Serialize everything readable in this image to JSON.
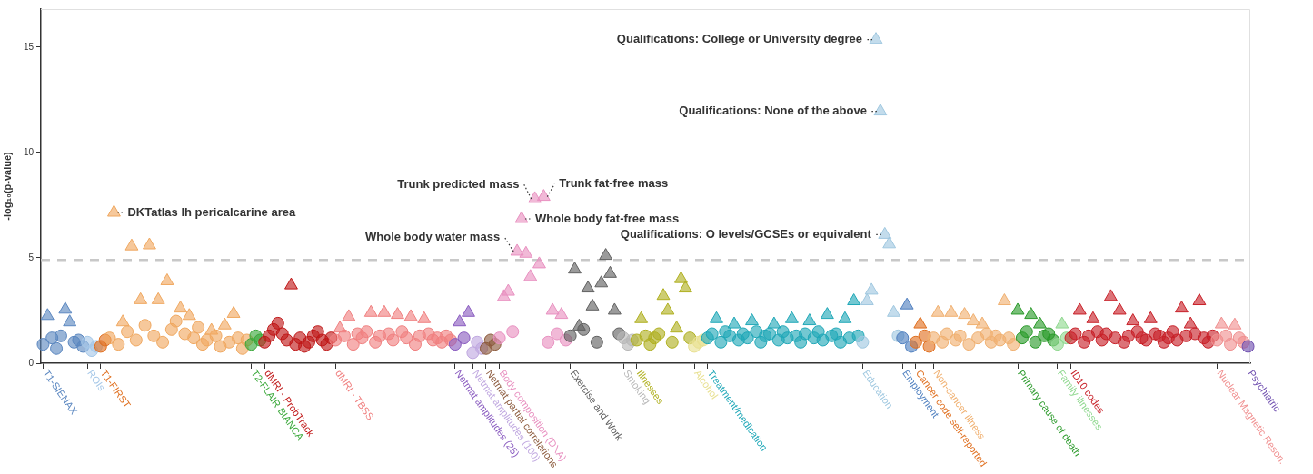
{
  "chart_data": {
    "type": "scatter",
    "ylabel": "-log₁₀(p-value)",
    "ylim": [
      0,
      16.8
    ],
    "yticks": [
      0,
      5,
      10,
      15
    ],
    "grid": false,
    "legend": false,
    "categories": [
      "T1-SIENAX",
      null,
      null,
      null,
      null,
      null,
      null,
      null,
      null,
      null,
      "ROIs",
      null,
      null,
      "T1-FIRST",
      null,
      null,
      null,
      null,
      null,
      null,
      null,
      null,
      null,
      null,
      null,
      null,
      null,
      null,
      null,
      null,
      null,
      null,
      null,
      null,
      null,
      null,
      null,
      null,
      null,
      null,
      null,
      null,
      null,
      null,
      null,
      null,
      null,
      "T2-FLAIR BIANCA",
      null,
      null,
      "dMRI - ProbTrack",
      null,
      null,
      null,
      null,
      null,
      null,
      null,
      null,
      null,
      null,
      null,
      null,
      null,
      null,
      null,
      "dMRI - TBSS",
      null,
      null,
      null,
      null,
      null,
      null,
      null,
      null,
      null,
      null,
      null,
      null,
      null,
      null,
      null,
      null,
      null,
      null,
      null,
      null,
      null,
      null,
      null,
      null,
      null,
      null,
      "Netmat amplitudes (25)",
      null,
      null,
      null,
      "Netmat amplitudes (100)",
      null,
      null,
      "Netmat partial correlations",
      null,
      null,
      "Body composition (DXA)",
      null,
      null,
      null,
      null,
      null,
      null,
      null,
      null,
      null,
      null,
      null,
      null,
      null,
      null,
      null,
      "Exercise and Work",
      null,
      null,
      null,
      null,
      null,
      null,
      null,
      null,
      null,
      null,
      null,
      "Smoking",
      null,
      null,
      "Illnesses",
      null,
      null,
      null,
      null,
      null,
      null,
      null,
      null,
      null,
      null,
      null,
      null,
      "Alcohol",
      null,
      null,
      "Treatment/medication",
      null,
      null,
      null,
      null,
      null,
      null,
      null,
      null,
      null,
      null,
      null,
      null,
      null,
      null,
      null,
      null,
      null,
      null,
      null,
      null,
      null,
      null,
      null,
      null,
      null,
      null,
      null,
      null,
      null,
      null,
      null,
      null,
      null,
      null,
      "Education",
      null,
      null,
      null,
      null,
      null,
      null,
      null,
      null,
      "Employment",
      null,
      null,
      "Cancer code self-reported",
      null,
      null,
      null,
      "Non-cancer illness",
      null,
      null,
      null,
      null,
      null,
      null,
      null,
      null,
      null,
      null,
      null,
      null,
      null,
      null,
      null,
      null,
      null,
      null,
      "Primary cause of death",
      null,
      null,
      null,
      null,
      null,
      null,
      null,
      null,
      "Family illnesses",
      null,
      null,
      "ID10 codes",
      null,
      null,
      null,
      null,
      null,
      null,
      null,
      null,
      null,
      null,
      null,
      null,
      null,
      null,
      null,
      null,
      null,
      null,
      null,
      null,
      null,
      null,
      null,
      null,
      null,
      null,
      null,
      null,
      null,
      null,
      null,
      null,
      "Nuclear Magnetic Reson.",
      null,
      null,
      null,
      null,
      null,
      null,
      "Psychiatric"
    ],
    "ref_lines": [
      {
        "axis": "y",
        "value": 4.9,
        "color": "#c8c8c8",
        "line_style": "dashed"
      }
    ],
    "annotations": [
      "DKTatlas lh pericalcarine area",
      "Trunk predicted mass",
      "Trunk fat-free mass",
      "Whole body fat-free mass",
      "Whole body water mass",
      "Qualifications: College or University degree",
      "Qualifications: None of the above",
      "Qualifications: O levels/GCSEs or equivalent"
    ],
    "series": [
      {
        "marker": "circle",
        "values": [
          0.9,
          null,
          1.2,
          0.7,
          1.3,
          null,
          null,
          1.0,
          1.1,
          0.8,
          1.0,
          0.6,
          0.8,
          0.8,
          1.1,
          1.2,
          null,
          0.9,
          null,
          1.5,
          null,
          1.1,
          null,
          1.8,
          null,
          1.3,
          null,
          1.0,
          null,
          1.6,
          2.0,
          null,
          1.4,
          null,
          1.2,
          1.7,
          0.9,
          1.1,
          null,
          1.3,
          0.8,
          null,
          1.0,
          null,
          1.2,
          0.7,
          1.1,
          0.9,
          1.3,
          1.1,
          1.0,
          1.3,
          1.6,
          1.9,
          1.4,
          1.1,
          null,
          0.9,
          1.2,
          0.8,
          1.0,
          1.3,
          1.5,
          1.1,
          0.9,
          1.2,
          1.1,
          null,
          1.3,
          null,
          0.9,
          1.4,
          1.2,
          1.5,
          null,
          1.0,
          1.3,
          null,
          1.4,
          1.1,
          null,
          1.5,
          1.2,
          null,
          0.9,
          1.3,
          null,
          1.4,
          1.1,
          1.2,
          1.0,
          1.3,
          1.1,
          0.9,
          null,
          1.2,
          null,
          0.5,
          1.0,
          0.7,
          0.7,
          1.1,
          0.9,
          1.2,
          null,
          null,
          1.5,
          null,
          null,
          null,
          null,
          null,
          null,
          null,
          1.0,
          null,
          1.4,
          null,
          1.1,
          1.3,
          null,
          null,
          1.6,
          null,
          null,
          1.0,
          null,
          null,
          null,
          null,
          1.4,
          1.2,
          0.9,
          1.1,
          1.1,
          null,
          1.3,
          0.9,
          1.2,
          1.4,
          null,
          null,
          1.0,
          null,
          null,
          null,
          1.2,
          0.8,
          1.0,
          1.1,
          1.2,
          1.4,
          null,
          1.0,
          1.5,
          1.3,
          null,
          1.1,
          1.4,
          1.2,
          null,
          1.5,
          1.0,
          1.3,
          1.4,
          null,
          1.1,
          1.5,
          1.2,
          null,
          1.3,
          1.0,
          1.4,
          null,
          1.2,
          1.5,
          1.1,
          null,
          1.3,
          1.4,
          1.0,
          null,
          1.2,
          null,
          1.3,
          1.0,
          null,
          null,
          null,
          null,
          null,
          null,
          null,
          1.3,
          1.2,
          null,
          0.8,
          1.0,
          null,
          1.3,
          0.8,
          1.2,
          null,
          1.0,
          1.4,
          null,
          1.1,
          1.3,
          null,
          0.9,
          null,
          1.2,
          null,
          1.4,
          1.0,
          1.3,
          1.1,
          null,
          1.2,
          0.9,
          null,
          1.2,
          1.5,
          null,
          1.0,
          null,
          1.3,
          1.4,
          1.1,
          0.9,
          null,
          1.2,
          1.2,
          1.4,
          null,
          1.0,
          1.3,
          null,
          1.5,
          1.1,
          1.4,
          null,
          1.2,
          null,
          1.0,
          1.3,
          null,
          1.5,
          1.2,
          1.1,
          null,
          1.4,
          1.3,
          1.0,
          1.2,
          1.5,
          1.1,
          null,
          1.3,
          null,
          1.4,
          null,
          1.2,
          1.0,
          1.3,
          1.1,
          null,
          1.3,
          0.9,
          null,
          1.2,
          1.0,
          0.8
        ],
        "colors": [
          "#5b87c0",
          "#5b87c0",
          "#5b87c0",
          "#5b87c0",
          "#5b87c0",
          "#5b87c0",
          "#5b87c0",
          "#5b87c0",
          "#5b87c0",
          "#5b87c0",
          "#a6c8e8",
          "#a6c8e8",
          "#a6c8e8",
          "#e07020",
          "#e07020",
          "#f0a860",
          "#f0a860",
          "#f0a860",
          "#f0a860",
          "#f0a860",
          "#f0a860",
          "#f0a860",
          "#f0a860",
          "#f0a860",
          "#f0a860",
          "#f0a860",
          "#f0a860",
          "#f0a860",
          "#f0a860",
          "#f0a860",
          "#f0a860",
          "#f0a860",
          "#f0a860",
          "#f0a860",
          "#f0a860",
          "#f0a860",
          "#f0a860",
          "#f0a860",
          "#f0a860",
          "#f0a860",
          "#f0a860",
          "#f0a860",
          "#f0a860",
          "#f0a860",
          "#f0a860",
          "#f0a860",
          "#f0a860",
          "#3aa83a",
          "#3aa83a",
          "#3aa83a",
          "#c01818",
          "#c01818",
          "#c01818",
          "#c01818",
          "#c01818",
          "#c01818",
          "#c01818",
          "#c01818",
          "#c01818",
          "#c01818",
          "#c01818",
          "#c01818",
          "#c01818",
          "#c01818",
          "#c01818",
          "#c01818",
          "#f08080",
          "#f08080",
          "#f08080",
          "#f08080",
          "#f08080",
          "#f08080",
          "#f08080",
          "#f08080",
          "#f08080",
          "#f08080",
          "#f08080",
          "#f08080",
          "#f08080",
          "#f08080",
          "#f08080",
          "#f08080",
          "#f08080",
          "#f08080",
          "#f08080",
          "#f08080",
          "#f08080",
          "#f08080",
          "#f08080",
          "#f08080",
          "#f08080",
          "#f08080",
          "#f08080",
          "#8a5cc0",
          "#8a5cc0",
          "#8a5cc0",
          "#8a5cc0",
          "#c0a8e0",
          "#c0a8e0",
          "#c0a8e0",
          "#8c5a3c",
          "#8c5a3c",
          "#8c5a3c",
          "#e890c0",
          "#e890c0",
          "#e890c0",
          "#e890c0",
          "#e890c0",
          "#e890c0",
          "#e890c0",
          "#e890c0",
          "#e890c0",
          "#e890c0",
          "#e890c0",
          "#e890c0",
          "#e890c0",
          "#e890c0",
          "#e890c0",
          "#e890c0",
          "#606060",
          "#606060",
          "#606060",
          "#606060",
          "#606060",
          "#606060",
          "#606060",
          "#606060",
          "#606060",
          "#606060",
          "#606060",
          "#606060",
          "#b8b8b8",
          "#b8b8b8",
          "#b8b8b8",
          "#b0b020",
          "#b0b020",
          "#b0b020",
          "#b0b020",
          "#b0b020",
          "#b0b020",
          "#b0b020",
          "#b0b020",
          "#b0b020",
          "#b0b020",
          "#b0b020",
          "#b0b020",
          "#b0b020",
          "#e8e090",
          "#e8e090",
          "#e8e090",
          "#20a8b8",
          "#20a8b8",
          "#20a8b8",
          "#20a8b8",
          "#20a8b8",
          "#20a8b8",
          "#20a8b8",
          "#20a8b8",
          "#20a8b8",
          "#20a8b8",
          "#20a8b8",
          "#20a8b8",
          "#20a8b8",
          "#20a8b8",
          "#20a8b8",
          "#20a8b8",
          "#20a8b8",
          "#20a8b8",
          "#20a8b8",
          "#20a8b8",
          "#20a8b8",
          "#20a8b8",
          "#20a8b8",
          "#20a8b8",
          "#20a8b8",
          "#20a8b8",
          "#20a8b8",
          "#20a8b8",
          "#20a8b8",
          "#20a8b8",
          "#20a8b8",
          "#20a8b8",
          "#20a8b8",
          "#20a8b8",
          "#20a8b8",
          "#a0c8e0",
          "#a0c8e0",
          "#a0c8e0",
          "#a0c8e0",
          "#a0c8e0",
          "#a0c8e0",
          "#a0c8e0",
          "#a0c8e0",
          "#a0c8e0",
          "#5080c0",
          "#5080c0",
          "#5080c0",
          "#e07020",
          "#e07020",
          "#e07020",
          "#e07020",
          "#f0b070",
          "#f0b070",
          "#f0b070",
          "#f0b070",
          "#f0b070",
          "#f0b070",
          "#f0b070",
          "#f0b070",
          "#f0b070",
          "#f0b070",
          "#f0b070",
          "#f0b070",
          "#f0b070",
          "#f0b070",
          "#f0b070",
          "#f0b070",
          "#f0b070",
          "#f0b070",
          "#f0b070",
          "#2a9a2a",
          "#2a9a2a",
          "#2a9a2a",
          "#2a9a2a",
          "#2a9a2a",
          "#2a9a2a",
          "#2a9a2a",
          "#2a9a2a",
          "#2a9a2a",
          "#90d890",
          "#90d890",
          "#90d890",
          "#c82028",
          "#c82028",
          "#c82028",
          "#c82028",
          "#c82028",
          "#c82028",
          "#c82028",
          "#c82028",
          "#c82028",
          "#c82028",
          "#c82028",
          "#c82028",
          "#c82028",
          "#c82028",
          "#c82028",
          "#c82028",
          "#c82028",
          "#c82028",
          "#c82028",
          "#c82028",
          "#c82028",
          "#c82028",
          "#c82028",
          "#c82028",
          "#c82028",
          "#c82028",
          "#c82028",
          "#c82028",
          "#c82028",
          "#c82028",
          "#c82028",
          "#c82028",
          "#c82028",
          "#f09090",
          "#f09090",
          "#f09090",
          "#f09090",
          "#f09090",
          "#f09090",
          "#f09090",
          "#7050b0"
        ]
      },
      {
        "marker": "triangle",
        "values": [
          null,
          2.25,
          null,
          null,
          null,
          2.55,
          1.95,
          null,
          null,
          null,
          null,
          null,
          null,
          null,
          null,
          null,
          7.15,
          null,
          1.95,
          null,
          5.55,
          null,
          3.0,
          null,
          5.6,
          null,
          3.0,
          null,
          3.9,
          null,
          null,
          2.6,
          null,
          2.25,
          null,
          null,
          null,
          null,
          1.55,
          null,
          null,
          1.8,
          null,
          2.35,
          null,
          null,
          null,
          null,
          null,
          null,
          null,
          null,
          null,
          null,
          null,
          null,
          3.7,
          null,
          null,
          null,
          null,
          null,
          null,
          null,
          null,
          null,
          null,
          1.65,
          null,
          2.2,
          null,
          null,
          null,
          null,
          2.4,
          null,
          null,
          2.4,
          null,
          null,
          2.3,
          null,
          null,
          2.2,
          null,
          null,
          2.1,
          null,
          null,
          null,
          null,
          null,
          null,
          null,
          1.95,
          null,
          2.4,
          null,
          null,
          null,
          null,
          null,
          null,
          null,
          3.15,
          3.4,
          null,
          5.3,
          6.85,
          5.2,
          4.1,
          7.8,
          4.7,
          7.9,
          null,
          2.5,
          null,
          2.3,
          null,
          null,
          4.45,
          1.75,
          null,
          3.55,
          2.7,
          null,
          3.8,
          5.1,
          4.25,
          2.5,
          null,
          null,
          null,
          null,
          null,
          2.1,
          null,
          null,
          null,
          null,
          3.2,
          2.5,
          null,
          1.65,
          4.0,
          3.55,
          null,
          null,
          null,
          null,
          null,
          null,
          2.1,
          null,
          null,
          null,
          1.85,
          null,
          null,
          null,
          2.0,
          null,
          null,
          null,
          null,
          1.85,
          null,
          null,
          null,
          2.1,
          null,
          null,
          null,
          2.0,
          null,
          null,
          null,
          2.3,
          null,
          null,
          null,
          2.1,
          null,
          2.95,
          null,
          null,
          2.95,
          3.45,
          15.35,
          11.95,
          6.1,
          5.65,
          2.4,
          null,
          null,
          2.75,
          null,
          null,
          1.85,
          null,
          null,
          null,
          2.4,
          null,
          null,
          2.4,
          null,
          null,
          2.3,
          null,
          2.0,
          null,
          1.85,
          null,
          null,
          null,
          null,
          2.95,
          null,
          null,
          2.5,
          null,
          null,
          2.3,
          null,
          1.85,
          null,
          null,
          null,
          null,
          1.85,
          null,
          null,
          null,
          2.5,
          null,
          null,
          2.1,
          null,
          null,
          null,
          3.15,
          null,
          2.5,
          null,
          null,
          2.0,
          null,
          null,
          null,
          2.1,
          null,
          null,
          null,
          null,
          null,
          null,
          2.6,
          null,
          1.85,
          null,
          2.95,
          null,
          null,
          null,
          null,
          1.85,
          null,
          null,
          1.8,
          null,
          null,
          null
        ],
        "colors": [
          "#5b87c0",
          "#5b87c0",
          "#5b87c0",
          "#5b87c0",
          "#5b87c0",
          "#5b87c0",
          "#5b87c0",
          "#5b87c0",
          "#5b87c0",
          "#5b87c0",
          "#a6c8e8",
          "#a6c8e8",
          "#a6c8e8",
          "#e07020",
          "#e07020",
          "#f0a860",
          "#f0a860",
          "#f0a860",
          "#f0a860",
          "#f0a860",
          "#f0a860",
          "#f0a860",
          "#f0a860",
          "#f0a860",
          "#f0a860",
          "#f0a860",
          "#f0a860",
          "#f0a860",
          "#f0a860",
          "#f0a860",
          "#f0a860",
          "#f0a860",
          "#f0a860",
          "#f0a860",
          "#f0a860",
          "#f0a860",
          "#f0a860",
          "#f0a860",
          "#f0a860",
          "#f0a860",
          "#f0a860",
          "#f0a860",
          "#f0a860",
          "#f0a860",
          "#f0a860",
          "#f0a860",
          "#f0a860",
          "#3aa83a",
          "#3aa83a",
          "#3aa83a",
          "#c01818",
          "#c01818",
          "#c01818",
          "#c01818",
          "#c01818",
          "#c01818",
          "#c01818",
          "#c01818",
          "#c01818",
          "#c01818",
          "#c01818",
          "#c01818",
          "#c01818",
          "#c01818",
          "#c01818",
          "#c01818",
          "#f08080",
          "#f08080",
          "#f08080",
          "#f08080",
          "#f08080",
          "#f08080",
          "#f08080",
          "#f08080",
          "#f08080",
          "#f08080",
          "#f08080",
          "#f08080",
          "#f08080",
          "#f08080",
          "#f08080",
          "#f08080",
          "#f08080",
          "#f08080",
          "#f08080",
          "#f08080",
          "#f08080",
          "#f08080",
          "#f08080",
          "#f08080",
          "#f08080",
          "#f08080",
          "#f08080",
          "#8a5cc0",
          "#8a5cc0",
          "#8a5cc0",
          "#8a5cc0",
          "#c0a8e0",
          "#c0a8e0",
          "#c0a8e0",
          "#8c5a3c",
          "#8c5a3c",
          "#8c5a3c",
          "#e890c0",
          "#e890c0",
          "#e890c0",
          "#e890c0",
          "#e890c0",
          "#e890c0",
          "#e890c0",
          "#e890c0",
          "#e890c0",
          "#e890c0",
          "#e890c0",
          "#e890c0",
          "#e890c0",
          "#e890c0",
          "#e890c0",
          "#e890c0",
          "#606060",
          "#606060",
          "#606060",
          "#606060",
          "#606060",
          "#606060",
          "#606060",
          "#606060",
          "#606060",
          "#606060",
          "#606060",
          "#606060",
          "#b8b8b8",
          "#b8b8b8",
          "#b8b8b8",
          "#b0b020",
          "#b0b020",
          "#b0b020",
          "#b0b020",
          "#b0b020",
          "#b0b020",
          "#b0b020",
          "#b0b020",
          "#b0b020",
          "#b0b020",
          "#b0b020",
          "#b0b020",
          "#b0b020",
          "#e8e090",
          "#e8e090",
          "#e8e090",
          "#20a8b8",
          "#20a8b8",
          "#20a8b8",
          "#20a8b8",
          "#20a8b8",
          "#20a8b8",
          "#20a8b8",
          "#20a8b8",
          "#20a8b8",
          "#20a8b8",
          "#20a8b8",
          "#20a8b8",
          "#20a8b8",
          "#20a8b8",
          "#20a8b8",
          "#20a8b8",
          "#20a8b8",
          "#20a8b8",
          "#20a8b8",
          "#20a8b8",
          "#20a8b8",
          "#20a8b8",
          "#20a8b8",
          "#20a8b8",
          "#20a8b8",
          "#20a8b8",
          "#20a8b8",
          "#20a8b8",
          "#20a8b8",
          "#20a8b8",
          "#20a8b8",
          "#20a8b8",
          "#20a8b8",
          "#20a8b8",
          "#20a8b8",
          "#a0c8e0",
          "#a0c8e0",
          "#a0c8e0",
          "#a0c8e0",
          "#a0c8e0",
          "#a0c8e0",
          "#a0c8e0",
          "#a0c8e0",
          "#a0c8e0",
          "#5080c0",
          "#5080c0",
          "#5080c0",
          "#e07020",
          "#e07020",
          "#e07020",
          "#e07020",
          "#f0b070",
          "#f0b070",
          "#f0b070",
          "#f0b070",
          "#f0b070",
          "#f0b070",
          "#f0b070",
          "#f0b070",
          "#f0b070",
          "#f0b070",
          "#f0b070",
          "#f0b070",
          "#f0b070",
          "#f0b070",
          "#f0b070",
          "#f0b070",
          "#f0b070",
          "#f0b070",
          "#f0b070",
          "#2a9a2a",
          "#2a9a2a",
          "#2a9a2a",
          "#2a9a2a",
          "#2a9a2a",
          "#2a9a2a",
          "#2a9a2a",
          "#2a9a2a",
          "#2a9a2a",
          "#90d890",
          "#90d890",
          "#90d890",
          "#c82028",
          "#c82028",
          "#c82028",
          "#c82028",
          "#c82028",
          "#c82028",
          "#c82028",
          "#c82028",
          "#c82028",
          "#c82028",
          "#c82028",
          "#c82028",
          "#c82028",
          "#c82028",
          "#c82028",
          "#c82028",
          "#c82028",
          "#c82028",
          "#c82028",
          "#c82028",
          "#c82028",
          "#c82028",
          "#c82028",
          "#c82028",
          "#c82028",
          "#c82028",
          "#c82028",
          "#c82028",
          "#c82028",
          "#c82028",
          "#c82028",
          "#c82028",
          "#c82028",
          "#f09090",
          "#f09090",
          "#f09090",
          "#f09090",
          "#f09090",
          "#f09090",
          "#f09090",
          "#7050b0"
        ]
      }
    ]
  }
}
